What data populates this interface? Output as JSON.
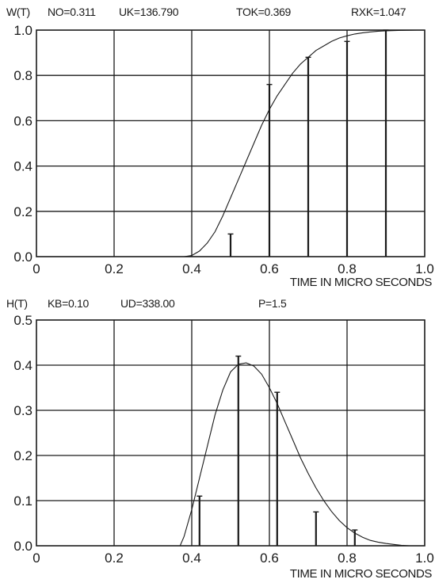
{
  "chart_data": [
    {
      "type": "line",
      "ylabel": "W(T)",
      "xlabel": "TIME IN MICRO SECONDS",
      "params": [
        "NO=0.311",
        "UK=136.790",
        "TOK=0.369",
        "RXK=1.047"
      ],
      "xlim": [
        0,
        1.0
      ],
      "ylim": [
        0,
        1.0
      ],
      "x_ticks": [
        "0",
        "0.2",
        "0.4",
        "0.6",
        "0.8",
        "1.0"
      ],
      "y_ticks": [
        "0.0",
        "0.2",
        "0.4",
        "0.6",
        "0.8",
        "1.0"
      ],
      "grid": true,
      "curve": {
        "x": [
          0.0,
          0.38,
          0.4,
          0.42,
          0.44,
          0.46,
          0.48,
          0.5,
          0.52,
          0.54,
          0.56,
          0.58,
          0.6,
          0.62,
          0.64,
          0.66,
          0.68,
          0.7,
          0.72,
          0.74,
          0.76,
          0.78,
          0.8,
          0.82,
          0.84,
          0.86,
          0.88,
          0.9,
          0.94,
          0.98,
          1.0
        ],
        "y": [
          0.0,
          0.0,
          0.005,
          0.025,
          0.06,
          0.11,
          0.18,
          0.26,
          0.34,
          0.42,
          0.5,
          0.58,
          0.65,
          0.71,
          0.76,
          0.81,
          0.85,
          0.88,
          0.91,
          0.93,
          0.95,
          0.965,
          0.975,
          0.983,
          0.988,
          0.992,
          0.995,
          0.997,
          0.999,
          1.0,
          1.0
        ]
      },
      "bars": {
        "x": [
          0.5,
          0.6,
          0.7,
          0.8,
          0.9
        ],
        "y": [
          0.1,
          0.76,
          0.88,
          0.95,
          1.0
        ]
      }
    },
    {
      "type": "line",
      "ylabel": "H(T)",
      "xlabel": "TIME IN MICRO SECONDS",
      "params": [
        "KB=0.10",
        "UD=338.00",
        "P=1.5"
      ],
      "xlim": [
        0,
        1.0
      ],
      "ylim": [
        0,
        0.5
      ],
      "x_ticks": [
        "0",
        "0.2",
        "0.4",
        "0.6",
        "0.8",
        "1.0"
      ],
      "y_ticks": [
        "0.0",
        "0.1",
        "0.2",
        "0.3",
        "0.4",
        "0.5"
      ],
      "grid": true,
      "curve": {
        "x": [
          0.0,
          0.37,
          0.38,
          0.4,
          0.42,
          0.44,
          0.46,
          0.48,
          0.5,
          0.52,
          0.54,
          0.56,
          0.58,
          0.6,
          0.62,
          0.64,
          0.66,
          0.68,
          0.7,
          0.72,
          0.74,
          0.76,
          0.78,
          0.8,
          0.82,
          0.84,
          0.86,
          0.88,
          0.9,
          0.92,
          0.94,
          0.96,
          1.0
        ],
        "y": [
          0.0,
          0.0,
          0.02,
          0.08,
          0.15,
          0.22,
          0.29,
          0.345,
          0.385,
          0.402,
          0.405,
          0.398,
          0.38,
          0.35,
          0.315,
          0.275,
          0.235,
          0.195,
          0.16,
          0.128,
          0.1,
          0.076,
          0.056,
          0.04,
          0.028,
          0.019,
          0.012,
          0.008,
          0.005,
          0.003,
          0.001,
          0.0,
          0.0
        ]
      },
      "bars": {
        "x": [
          0.42,
          0.52,
          0.62,
          0.72,
          0.82
        ],
        "y": [
          0.11,
          0.42,
          0.34,
          0.075,
          0.035
        ]
      }
    }
  ]
}
